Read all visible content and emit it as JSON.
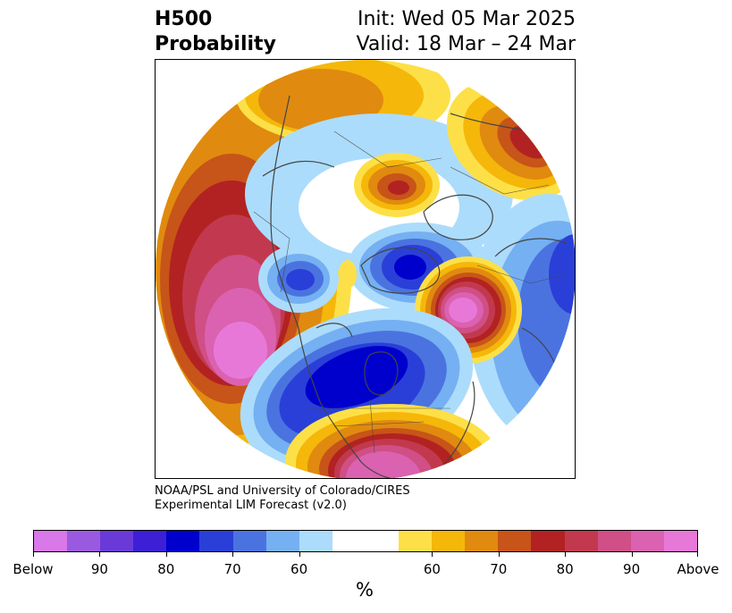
{
  "title": {
    "left_line1": "H500",
    "left_line2": "Probability",
    "right_line1": "Init: Wed 05 Mar 2025",
    "right_line2": "Valid: 18 Mar – 24 Mar"
  },
  "credit": {
    "line1": "NOAA/PSL and University of Colorado/CIRES",
    "line2": "Experimental LIM Forecast (v2.0)"
  },
  "colorbar": {
    "colors": [
      "#d978e8",
      "#9a5ae0",
      "#6a3ad8",
      "#3d1fd6",
      "#0000cc",
      "#2a3fd8",
      "#4a73e0",
      "#75b0f2",
      "#acdcfb",
      "#ffffff",
      "#ffffff",
      "#fde047",
      "#f5b70a",
      "#e08a10",
      "#c75418",
      "#b22222",
      "#c2394f",
      "#cf4f86",
      "#db62b0",
      "#e878d8"
    ],
    "labels": [
      "Below",
      "90",
      "80",
      "70",
      "60",
      "60",
      "70",
      "80",
      "90",
      "Above"
    ],
    "unit": "%"
  },
  "map": {
    "colors": {
      "below_deep": "#0000cc",
      "below_mid": "#2a3fd8",
      "below_light": "#4a73e0",
      "below_pale": "#75b0f2",
      "below_faint": "#acdcfb",
      "above_yellow": "#fde047",
      "above_gold": "#f5b70a",
      "above_orange": "#e08a10",
      "above_rust": "#c75418",
      "above_red": "#b22222",
      "above_rose": "#c2394f",
      "above_pink": "#cf4f86",
      "above_magenta": "#db62b0",
      "above_max": "#e878d8",
      "coast": "#444444"
    }
  }
}
